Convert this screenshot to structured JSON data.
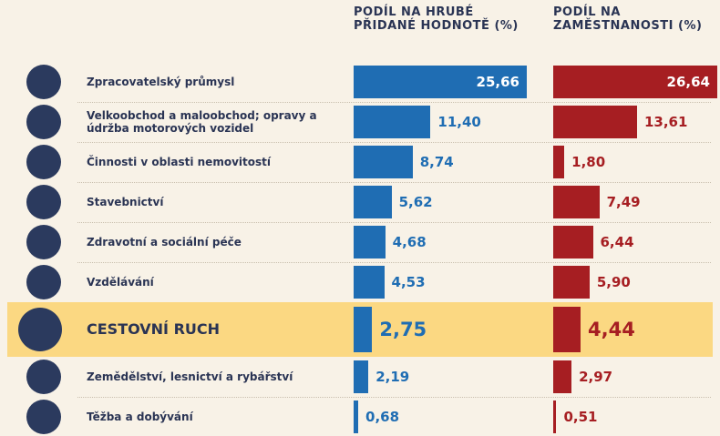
{
  "chart_data": {
    "type": "bar",
    "categories": [
      "Zpracovatelský průmysl",
      "Velkoobchod a maloobchod; opravy a údržba motorových vozidel",
      "Činnosti v oblasti nemovitostí",
      "Stavebnictví",
      "Zdravotní a sociální péče",
      "Vzdělávání",
      "CESTOVNÍ RUCH",
      "Zemědělství, lesnictví a rybářství",
      "Těžba a dobývání"
    ],
    "series": [
      {
        "name": "PODÍL NA HRUBÉ PŘIDANÉ HODNOTĚ (%)",
        "color": "#1f6db3",
        "values": [
          25.66,
          11.4,
          8.74,
          5.62,
          4.68,
          4.53,
          2.75,
          2.19,
          0.68
        ],
        "value_labels": [
          "25,66",
          "11,40",
          "8,74",
          "5,62",
          "4,68",
          "4,53",
          "2,75",
          "2,19",
          "0,68"
        ]
      },
      {
        "name": "PODÍL NA ZAMĚSTNANOSTI (%)",
        "color": "#a61e22",
        "values": [
          26.64,
          13.61,
          1.8,
          7.49,
          6.44,
          5.9,
          4.44,
          2.97,
          0.51
        ],
        "value_labels": [
          "26,64",
          "13,61",
          "1,80",
          "7,49",
          "6,44",
          "5,90",
          "4,44",
          "2,97",
          "0,51"
        ]
      }
    ],
    "highlight": 6,
    "highlight_color": "#fbd882"
  }
}
